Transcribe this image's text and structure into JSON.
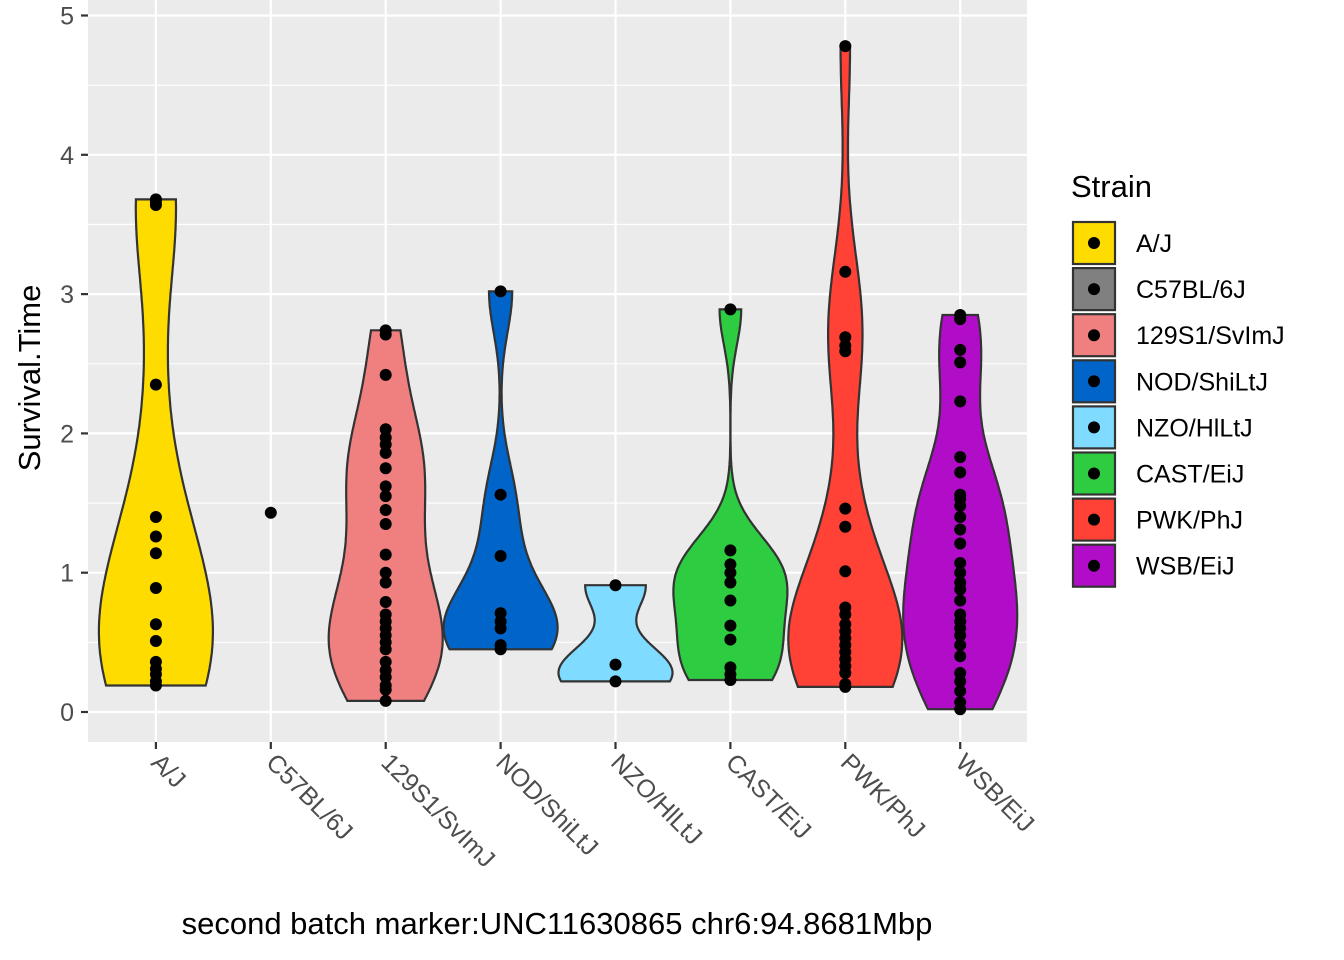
{
  "chart_data": {
    "type": "violin",
    "xlabel": "second batch marker:UNC11630865 chr6:94.8681Mbp",
    "ylabel": "Survival.Time",
    "ylim": [
      -0.2,
      5.0
    ],
    "yticks": [
      0,
      1,
      2,
      3,
      4,
      5
    ],
    "grid": true,
    "legend": {
      "title": "Strain",
      "placement": "right"
    },
    "categories": [
      "A/J",
      "C57BL/6J",
      "129S1/SvImJ",
      "NOD/ShiLtJ",
      "NZO/HlLtJ",
      "CAST/EiJ",
      "PWK/PhJ",
      "WSB/EiJ"
    ],
    "series": [
      {
        "name": "A/J",
        "color": "#FFDC00",
        "points": [
          0.19,
          0.22,
          0.27,
          0.31,
          0.36,
          0.51,
          0.63,
          0.89,
          1.14,
          1.26,
          1.4,
          2.35,
          3.64,
          3.66,
          3.68
        ]
      },
      {
        "name": "C57BL/6J",
        "color": "#808080",
        "points": [
          1.43
        ]
      },
      {
        "name": "129S1/SvImJ",
        "color": "#F08080",
        "points": [
          0.08,
          0.16,
          0.19,
          0.25,
          0.3,
          0.36,
          0.45,
          0.5,
          0.55,
          0.6,
          0.65,
          0.7,
          0.79,
          0.93,
          1.0,
          1.13,
          1.35,
          1.45,
          1.55,
          1.62,
          1.75,
          1.86,
          1.92,
          1.97,
          2.03,
          2.42,
          2.71,
          2.74
        ]
      },
      {
        "name": "NOD/ShiLtJ",
        "color": "#0064C9",
        "points": [
          0.45,
          0.48,
          0.6,
          0.65,
          0.71,
          1.12,
          1.56,
          3.02
        ]
      },
      {
        "name": "NZO/HlLtJ",
        "color": "#7FDBFF",
        "points": [
          0.22,
          0.34,
          0.91
        ]
      },
      {
        "name": "CAST/EiJ",
        "color": "#2ECC40",
        "points": [
          0.23,
          0.27,
          0.32,
          0.52,
          0.62,
          0.8,
          0.93,
          1.0,
          1.06,
          1.16,
          2.89
        ]
      },
      {
        "name": "PWK/PhJ",
        "color": "#FF4136",
        "points": [
          0.18,
          0.2,
          0.28,
          0.33,
          0.38,
          0.43,
          0.48,
          0.53,
          0.58,
          0.63,
          0.7,
          0.75,
          1.01,
          1.33,
          1.46,
          2.59,
          2.63,
          2.69,
          3.16,
          4.78
        ]
      },
      {
        "name": "WSB/EiJ",
        "color": "#B10DC9",
        "points": [
          0.02,
          0.07,
          0.15,
          0.22,
          0.28,
          0.4,
          0.48,
          0.55,
          0.6,
          0.65,
          0.7,
          0.8,
          0.88,
          0.93,
          1.0,
          1.07,
          1.21,
          1.31,
          1.4,
          1.48,
          1.53,
          1.56,
          1.72,
          1.83,
          2.23,
          2.51,
          2.6,
          2.82,
          2.85
        ]
      }
    ]
  }
}
